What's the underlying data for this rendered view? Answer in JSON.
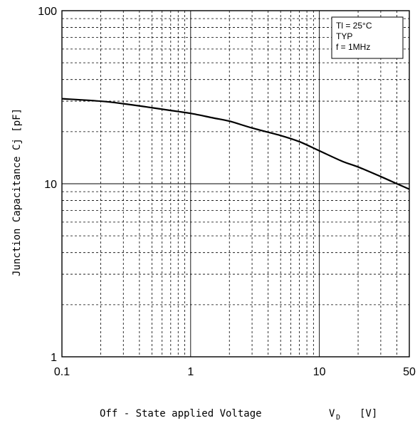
{
  "chart_data": {
    "type": "line",
    "title": "",
    "xlabel": "Off - State applied Voltage",
    "xlabel_symbol": "V",
    "xlabel_subscript": "D",
    "xlabel_unit": "[V]",
    "ylabel": "Junction Capacitance Cj [pF]",
    "x_scale": "log",
    "y_scale": "log",
    "xlim": [
      0.1,
      50
    ],
    "ylim": [
      1,
      100
    ],
    "x_ticks": [
      "0.1",
      "1",
      "10",
      "50"
    ],
    "y_ticks": [
      "1",
      "10",
      "100"
    ],
    "grid": true,
    "legend_position": "top-right",
    "legend": [
      "Tl = 25°C",
      "TYP",
      "f = 1MHz"
    ],
    "series": [
      {
        "x": [
          0.1,
          0.2,
          0.3,
          0.5,
          0.7,
          1,
          1.5,
          2,
          3,
          5,
          7,
          10,
          15,
          20,
          30,
          40,
          50
        ],
        "values": [
          31,
          30,
          29,
          27.5,
          26.5,
          25.5,
          24,
          23,
          21,
          19,
          17.5,
          15.5,
          13.5,
          12.5,
          11,
          10,
          9.3
        ]
      }
    ]
  }
}
